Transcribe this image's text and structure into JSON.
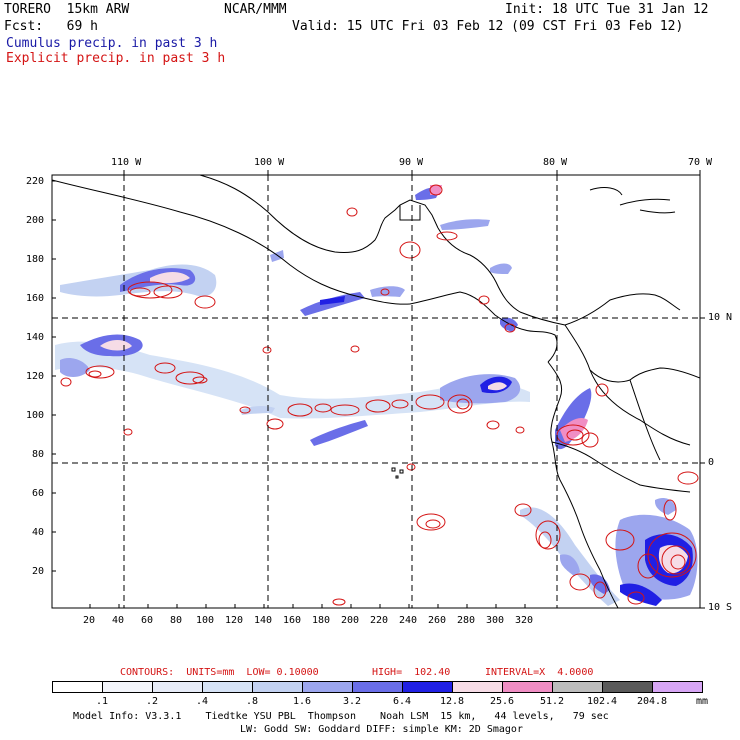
{
  "header": {
    "model": "TORERO  15km ARW",
    "org": "NCAR/MMM",
    "init": "Init: 18 UTC Tue 31 Jan 12",
    "fcst_label": "Fcst:   69 h",
    "valid": "Valid: 15 UTC Fri 03 Feb 12 (09 CST Fri 03 Feb 12)",
    "cumulus": "Cumulus precip. in past 3 h",
    "explicit": "Explicit precip. in past 3 h"
  },
  "map": {
    "lon_labels": [
      "110 W",
      "100 W",
      "90 W",
      "80 W",
      "70 W"
    ],
    "lat_labels": [
      "10 N",
      "0",
      "10 S"
    ],
    "y_ticks": [
      "220",
      "200",
      "180",
      "160",
      "140",
      "120",
      "100",
      "80",
      "60",
      "40",
      "20"
    ],
    "x_ticks": [
      "20",
      "40",
      "60",
      "80",
      "100",
      "120",
      "140",
      "160",
      "180",
      "200",
      "220",
      "240",
      "260",
      "280",
      "300",
      "320"
    ],
    "x_range": [
      0,
      334
    ],
    "y_range": [
      0,
      225
    ]
  },
  "contour_info": {
    "units": "CONTOURS:  UNITS=mm  LOW= 0.10000",
    "high": "HIGH=  102.40",
    "interval": "INTERVAL=X  4.0000"
  },
  "colorbar": {
    "colors": [
      "#ffffff",
      "#f3f5fb",
      "#e7ecf8",
      "#d6e3f6",
      "#c3d2f2",
      "#9ca6ee",
      "#6a6ee8",
      "#2020e4",
      "#f6dce6",
      "#f08ec4",
      "#bcbcbc",
      "#5a5a5a",
      "#d7a6f5"
    ],
    "labels": [
      ".1",
      ".2",
      ".4",
      ".8",
      "1.6",
      "3.2",
      "6.4",
      "12.8",
      "25.6",
      "51.2",
      "102.4",
      "204.8"
    ],
    "unit": "mm"
  },
  "footer": {
    "line1": "Model Info: V3.3.1    Tiedtke YSU PBL  Thompson    Noah LSM  15 km,   44 levels,   79 sec",
    "line2": "LW: Godd SW: Goddard DIFF: simple KM: 2D Smagor"
  }
}
